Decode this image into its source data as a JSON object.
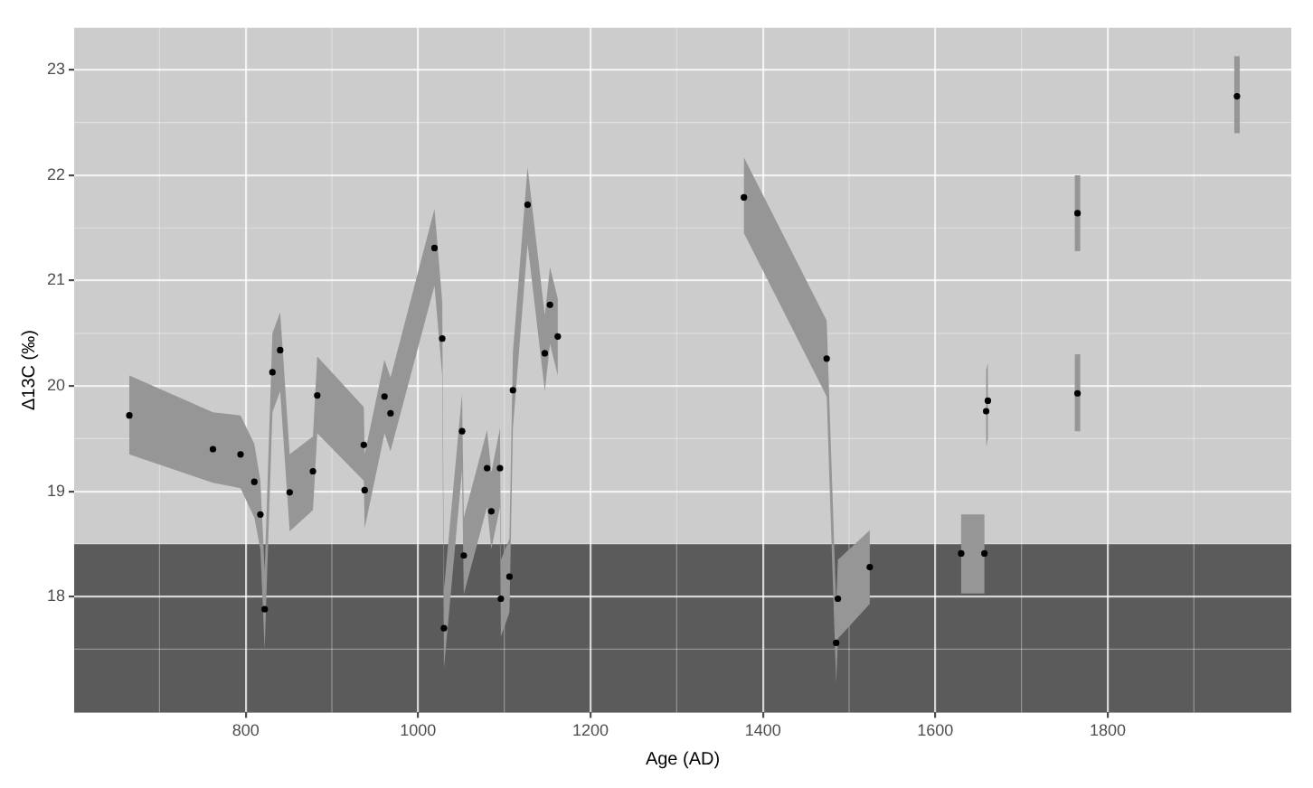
{
  "chart_data": {
    "type": "scatter",
    "xlabel": "Age (AD)",
    "ylabel": "Δ13C (‰)",
    "xlim": [
      601,
      2013
    ],
    "ylim": [
      16.9,
      23.4
    ],
    "xticks": [
      800,
      1000,
      1200,
      1400,
      1600,
      1800
    ],
    "yticks": [
      18,
      19,
      20,
      21,
      22,
      23
    ],
    "grid": true,
    "marker": "circle",
    "bands": [
      {
        "axis": "y",
        "from": 16.9,
        "to": 18.5,
        "color": "#5b5b5b"
      }
    ],
    "series": [
      {
        "color": "#000000",
        "x": [
          665,
          762,
          794,
          810,
          817,
          822,
          831,
          840,
          851,
          878,
          883,
          937,
          938,
          961,
          968,
          1019,
          1028,
          1030,
          1051,
          1053,
          1080,
          1085,
          1095,
          1096,
          1106,
          1110,
          1127,
          1147,
          1153,
          1162
        ],
        "values": [
          19.72,
          19.4,
          19.35,
          19.09,
          18.78,
          17.88,
          20.13,
          20.34,
          18.99,
          19.19,
          19.91,
          19.44,
          19.01,
          19.9,
          19.74,
          21.31,
          20.45,
          17.7,
          19.57,
          18.39,
          19.22,
          18.81,
          19.22,
          17.98,
          18.19,
          19.96,
          21.72,
          20.31,
          20.77,
          20.47
        ],
        "lower": [
          19.35,
          19.08,
          19.03,
          18.75,
          18.45,
          17.5,
          19.75,
          19.95,
          18.62,
          18.82,
          19.55,
          19.1,
          18.65,
          19.55,
          19.38,
          20.95,
          20.1,
          17.32,
          19.2,
          18.02,
          18.85,
          18.45,
          18.85,
          17.62,
          17.85,
          19.6,
          21.35,
          19.95,
          20.4,
          20.1
        ],
        "upper": [
          20.1,
          19.75,
          19.72,
          19.45,
          19.1,
          18.25,
          20.5,
          20.7,
          19.35,
          19.52,
          20.28,
          19.8,
          19.35,
          20.25,
          20.08,
          21.68,
          20.8,
          18.07,
          19.93,
          18.75,
          19.58,
          19.18,
          19.6,
          18.35,
          18.55,
          20.32,
          22.08,
          20.67,
          21.13,
          20.83
        ]
      },
      {
        "color": "#000000",
        "x": [
          1378,
          1474,
          1485,
          1487,
          1524
        ],
        "values": [
          21.79,
          20.26,
          17.56,
          17.98,
          18.28
        ],
        "lower": [
          21.45,
          19.9,
          17.18,
          17.6,
          17.93
        ],
        "upper": [
          22.17,
          20.62,
          17.93,
          18.35,
          18.63
        ]
      },
      {
        "color": "#000000",
        "x": [
          1630,
          1657
        ],
        "values": [
          18.41,
          18.41
        ],
        "lower": [
          18.03,
          18.03
        ],
        "upper": [
          18.78,
          18.78
        ]
      },
      {
        "color": "#000000",
        "x": [
          1659,
          1661
        ],
        "values": [
          19.76,
          19.86
        ],
        "lower": [
          19.42,
          19.5
        ],
        "upper": [
          20.15,
          20.22
        ]
      },
      {
        "color": "#000000",
        "x": [
          1765
        ],
        "values": [
          19.93
        ],
        "errors": [
          [
            19.57,
            20.3
          ]
        ]
      },
      {
        "color": "#000000",
        "x": [
          1765
        ],
        "values": [
          21.64
        ],
        "errors": [
          [
            21.28,
            22.0
          ]
        ]
      },
      {
        "color": "#000000",
        "x": [
          1950
        ],
        "values": [
          22.75
        ],
        "errors": [
          [
            22.4,
            23.13
          ]
        ]
      }
    ]
  }
}
